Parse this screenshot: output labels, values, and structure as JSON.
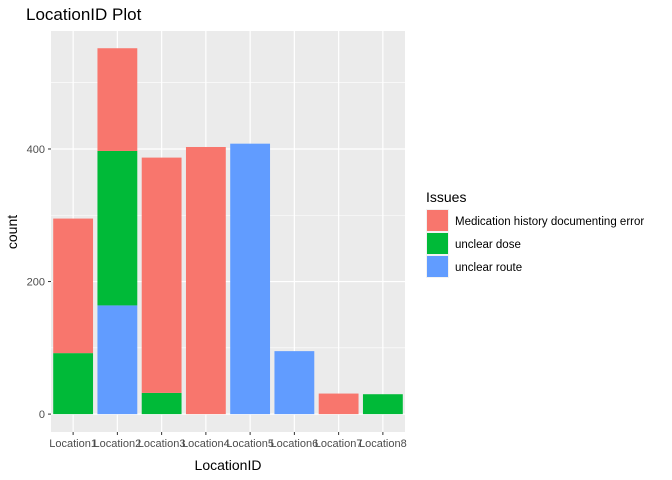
{
  "chart_data": {
    "type": "bar",
    "stacked": true,
    "title": "LocationID Plot",
    "xlabel": "LocationID",
    "ylabel": "count",
    "categories": [
      "Location1",
      "Location2",
      "Location3",
      "Location4",
      "Location5",
      "Location6",
      "Location7",
      "Location8"
    ],
    "series": [
      {
        "name": "Medication history documenting error",
        "color": "#F8766D",
        "values": [
          203,
          155,
          355,
          403,
          0,
          0,
          31,
          0
        ]
      },
      {
        "name": "unclear dose",
        "color": "#00BA38",
        "values": [
          92,
          233,
          32,
          0,
          0,
          0,
          0,
          30
        ]
      },
      {
        "name": "unclear route",
        "color": "#619CFF",
        "values": [
          0,
          164,
          0,
          0,
          408,
          95,
          0,
          0
        ]
      }
    ],
    "stack_order_bottom_to_top": [
      "unclear route",
      "unclear dose",
      "Medication history documenting error"
    ],
    "yticks": [
      0,
      200,
      400
    ],
    "ylim": [
      -27,
      578
    ],
    "grid": true,
    "panel_background": "#EBEBEB",
    "legend": {
      "title": "Issues",
      "placement": "right"
    }
  }
}
